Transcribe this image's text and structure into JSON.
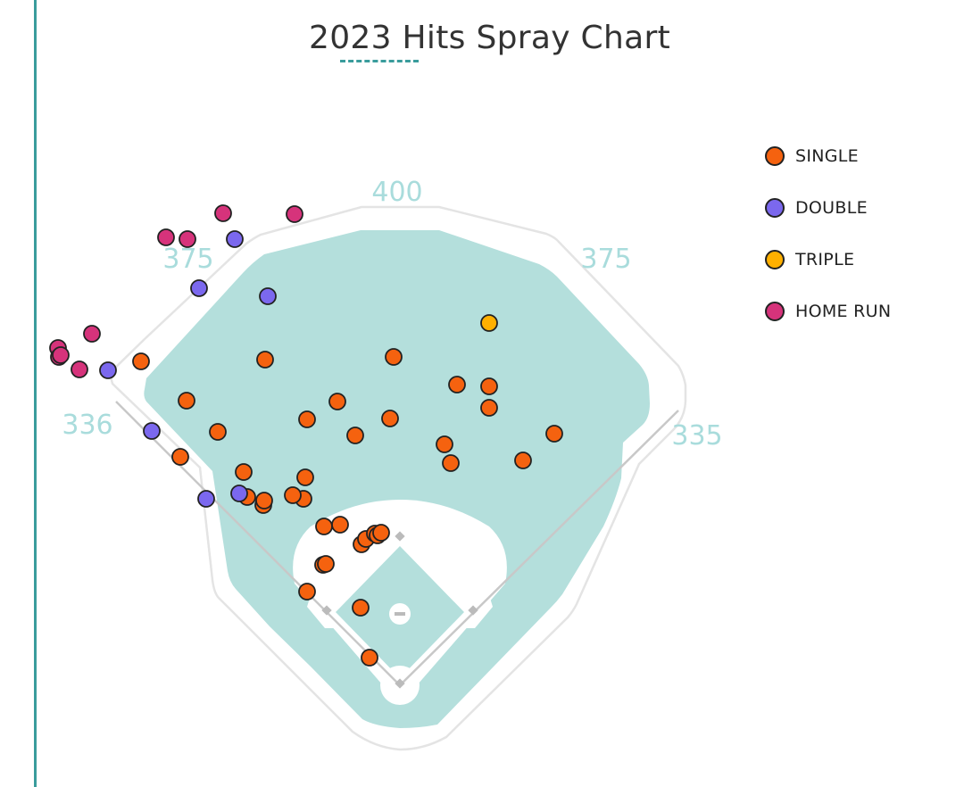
{
  "colors": {
    "accent": "#3a9c9c",
    "grass": "#b4dfdc",
    "wall": "#e4e4e4",
    "distance_label": "#a9dcdc",
    "single": "#f5620f",
    "double": "#7b68ee",
    "triple": "#ffb000",
    "home_run": "#d6337b"
  },
  "chart_data": {
    "type": "scatter",
    "title": "2023 Hits Spray Chart",
    "legend_position": "right",
    "distance_markers": [
      {
        "name": "lf-line",
        "label": "336"
      },
      {
        "name": "lcf",
        "label": "375"
      },
      {
        "name": "cf",
        "label": "400"
      },
      {
        "name": "rcf",
        "label": "375"
      },
      {
        "name": "rf-line",
        "label": "335"
      }
    ],
    "legend": [
      {
        "key": "single",
        "label": "SINGLE"
      },
      {
        "key": "double",
        "label": "DOUBLE"
      },
      {
        "key": "triple",
        "label": "TRIPLE"
      },
      {
        "key": "home_run",
        "label": "HOME RUN"
      }
    ],
    "series": [
      {
        "key": "single",
        "name": "SINGLE",
        "points": [
          [
            -290,
            363
          ],
          [
            -151,
            365
          ],
          [
            -7,
            368
          ],
          [
            -239,
            319
          ],
          [
            -70,
            318
          ],
          [
            64,
            337
          ],
          [
            100,
            335
          ],
          [
            173,
            282
          ],
          [
            138,
            252
          ],
          [
            -204,
            284
          ],
          [
            -104,
            298
          ],
          [
            -50,
            280
          ],
          [
            -11,
            299
          ],
          [
            50,
            270
          ],
          [
            57,
            249
          ],
          [
            100,
            311
          ],
          [
            -246,
            256
          ],
          [
            -175,
            239
          ],
          [
            -106,
            233
          ],
          [
            -153,
            202
          ],
          [
            -108,
            209
          ],
          [
            -171,
            211
          ],
          [
            -120,
            213
          ],
          [
            -152,
            207
          ],
          [
            -85,
            178
          ],
          [
            -67,
            180
          ],
          [
            -43,
            158
          ],
          [
            -38,
            164
          ],
          [
            -28,
            170
          ],
          [
            -25,
            168
          ],
          [
            -21,
            171
          ],
          [
            -86,
            135
          ],
          [
            -83,
            136
          ],
          [
            -104,
            105
          ],
          [
            -44,
            87
          ],
          [
            -34,
            31
          ]
        ]
      },
      {
        "key": "double",
        "name": "DOUBLE",
        "points": [
          [
            -185,
            500
          ],
          [
            -225,
            445
          ],
          [
            -148,
            436
          ],
          [
            -327,
            353
          ],
          [
            -278,
            285
          ],
          [
            -217,
            209
          ],
          [
            -180,
            215
          ]
        ]
      },
      {
        "key": "triple",
        "name": "TRIPLE",
        "points": [
          [
            100,
            406
          ]
        ]
      },
      {
        "key": "home_run",
        "name": "HOME RUN",
        "points": [
          [
            -198,
            529
          ],
          [
            -118,
            528
          ],
          [
            -262,
            502
          ],
          [
            -238,
            500
          ],
          [
            -345,
            394
          ],
          [
            -383,
            378
          ],
          [
            -382,
            368
          ],
          [
            -380,
            370
          ],
          [
            -359,
            354
          ]
        ]
      }
    ]
  }
}
